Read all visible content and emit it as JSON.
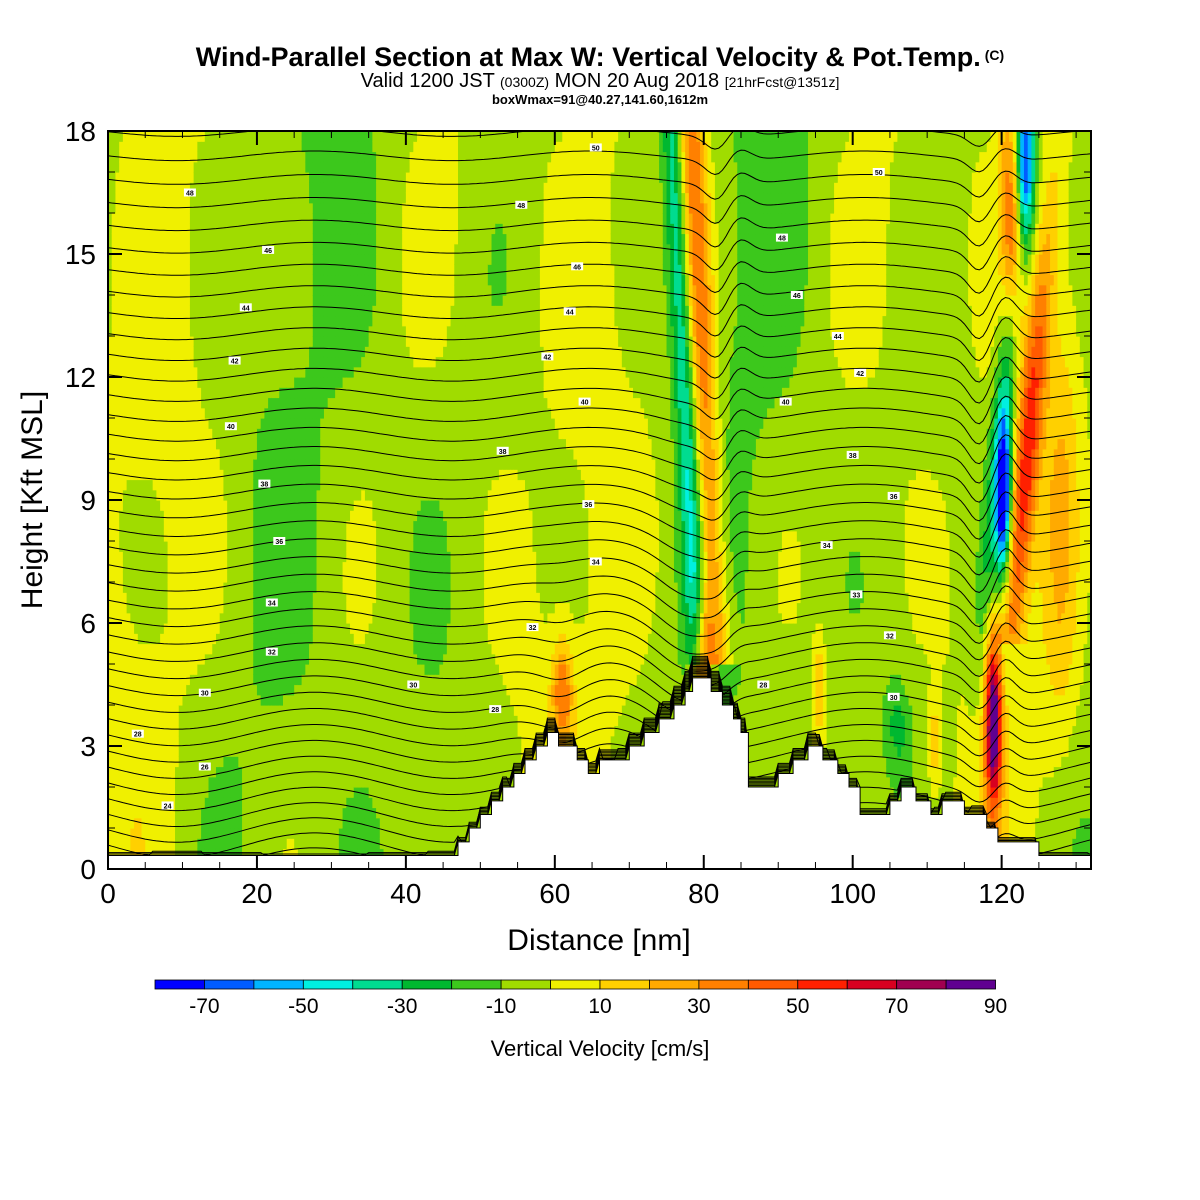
{
  "title": {
    "main": "Wind-Parallel Section at Max W: Vertical Velocity & Pot.Temp.",
    "copyright": "(C)",
    "valid_prefix": "Valid 1200 JST",
    "valid_z": "(0300Z)",
    "valid_date": "MON 20 Aug 2018",
    "forecast": "[21hrFcst@1351z]",
    "boxinfo": "boxWmax=91@40.27,141.60,1612m"
  },
  "chart_data": {
    "type": "heatmap",
    "xlabel": "Distance [nm]",
    "ylabel": "Height [Kft MSL]",
    "xlim": [
      0,
      132
    ],
    "ylim": [
      0,
      18
    ],
    "x_ticks": [
      "0",
      "20",
      "40",
      "60",
      "80",
      "100",
      "120"
    ],
    "y_ticks": [
      "0",
      "3",
      "6",
      "9",
      "12",
      "15",
      "18"
    ],
    "colorbar": {
      "label": "Vertical Velocity [cm/s]",
      "tick_labels": [
        "-70",
        "-50",
        "-30",
        "-10",
        "10",
        "30",
        "50",
        "70",
        "90"
      ],
      "levels": [
        -80,
        -70,
        -60,
        -50,
        -40,
        -30,
        -20,
        -10,
        0,
        10,
        20,
        30,
        40,
        50,
        60,
        70,
        80,
        90,
        100
      ],
      "colors": [
        "#0000ff",
        "#005cff",
        "#00b4ff",
        "#00f0e0",
        "#00dc90",
        "#00b830",
        "#3cc81c",
        "#a0dc00",
        "#f0f000",
        "#ffd000",
        "#ffaa00",
        "#ff8000",
        "#ff5a00",
        "#ff2000",
        "#d80020",
        "#a00050",
        "#600090"
      ]
    },
    "terrain": {
      "x_nm": [
        0,
        47,
        47,
        48.5,
        48.5,
        50,
        50,
        51.5,
        51.5,
        53,
        53,
        54.5,
        54.5,
        56,
        56,
        57.5,
        57.5,
        59,
        59,
        60.5,
        60.5,
        63,
        63,
        64.5,
        64.5,
        66,
        66,
        70,
        70,
        72,
        72,
        74,
        74,
        76,
        76,
        77.5,
        77.5,
        78.5,
        78.5,
        81,
        81,
        82.5,
        82.5,
        84,
        84,
        85,
        85,
        86,
        86,
        90,
        90,
        92,
        92,
        94,
        94,
        96,
        96,
        98,
        98,
        99.5,
        99.5,
        101,
        101,
        105,
        105,
        106.5,
        106.5,
        108.5,
        108.5,
        110.5,
        110.5,
        112,
        112,
        115,
        115,
        118,
        118,
        119.5,
        119.5,
        125,
        125,
        128,
        128,
        132
      ],
      "height_kft": [
        0.33,
        0.33,
        0.66,
        0.66,
        1.0,
        1.0,
        1.33,
        1.33,
        1.66,
        1.66,
        2.0,
        2.0,
        2.33,
        2.33,
        2.66,
        2.66,
        3.0,
        3.0,
        3.33,
        3.33,
        3.0,
        3.0,
        2.66,
        2.66,
        2.33,
        2.33,
        2.66,
        2.66,
        3.0,
        3.0,
        3.33,
        3.33,
        3.66,
        3.66,
        4.0,
        4.0,
        4.33,
        4.33,
        4.66,
        4.66,
        4.33,
        4.33,
        4.0,
        4.0,
        3.66,
        3.66,
        3.33,
        3.33,
        2.0,
        2.0,
        2.33,
        2.33,
        2.66,
        2.66,
        3.0,
        3.0,
        2.66,
        2.66,
        2.33,
        2.33,
        2.0,
        2.0,
        1.33,
        1.33,
        1.66,
        1.66,
        2.0,
        2.0,
        1.66,
        1.66,
        1.33,
        1.33,
        1.66,
        1.66,
        1.33,
        1.33,
        1.0,
        1.0,
        0.66,
        0.66,
        0.33,
        0.33,
        0.33,
        0.33
      ]
    },
    "contour_labels": [
      {
        "x_nm": 4,
        "z_kft": 3.3,
        "text": "28"
      },
      {
        "x_nm": 13,
        "z_kft": 4.3,
        "text": "30"
      },
      {
        "x_nm": 13,
        "z_kft": 2.5,
        "text": "26"
      },
      {
        "x_nm": 8,
        "z_kft": 1.55,
        "text": "24"
      },
      {
        "x_nm": 22,
        "z_kft": 5.3,
        "text": "32"
      },
      {
        "x_nm": 22,
        "z_kft": 6.5,
        "text": "34"
      },
      {
        "x_nm": 23,
        "z_kft": 8.0,
        "text": "36"
      },
      {
        "x_nm": 21,
        "z_kft": 9.4,
        "text": "38"
      },
      {
        "x_nm": 16.5,
        "z_kft": 10.8,
        "text": "40"
      },
      {
        "x_nm": 17,
        "z_kft": 12.4,
        "text": "42"
      },
      {
        "x_nm": 18.5,
        "z_kft": 13.7,
        "text": "44"
      },
      {
        "x_nm": 21.5,
        "z_kft": 15.1,
        "text": "46"
      },
      {
        "x_nm": 11,
        "z_kft": 16.5,
        "text": "48"
      },
      {
        "x_nm": 41,
        "z_kft": 4.5,
        "text": "30"
      },
      {
        "x_nm": 52,
        "z_kft": 3.9,
        "text": "28"
      },
      {
        "x_nm": 57,
        "z_kft": 5.9,
        "text": "32"
      },
      {
        "x_nm": 65.5,
        "z_kft": 7.5,
        "text": "34"
      },
      {
        "x_nm": 64.5,
        "z_kft": 8.9,
        "text": "36"
      },
      {
        "x_nm": 53,
        "z_kft": 10.2,
        "text": "38"
      },
      {
        "x_nm": 64,
        "z_kft": 11.4,
        "text": "40"
      },
      {
        "x_nm": 59,
        "z_kft": 12.5,
        "text": "42"
      },
      {
        "x_nm": 62,
        "z_kft": 13.6,
        "text": "44"
      },
      {
        "x_nm": 63,
        "z_kft": 14.7,
        "text": "46"
      },
      {
        "x_nm": 55.5,
        "z_kft": 16.2,
        "text": "48"
      },
      {
        "x_nm": 65.5,
        "z_kft": 17.6,
        "text": "50"
      },
      {
        "x_nm": 88,
        "z_kft": 4.5,
        "text": "28"
      },
      {
        "x_nm": 105.5,
        "z_kft": 4.2,
        "text": "30"
      },
      {
        "x_nm": 105,
        "z_kft": 5.7,
        "text": "32"
      },
      {
        "x_nm": 100.5,
        "z_kft": 6.7,
        "text": "33"
      },
      {
        "x_nm": 96.5,
        "z_kft": 7.9,
        "text": "34"
      },
      {
        "x_nm": 105.5,
        "z_kft": 9.1,
        "text": "36"
      },
      {
        "x_nm": 100,
        "z_kft": 10.1,
        "text": "38"
      },
      {
        "x_nm": 91,
        "z_kft": 11.4,
        "text": "40"
      },
      {
        "x_nm": 101,
        "z_kft": 12.1,
        "text": "42"
      },
      {
        "x_nm": 98,
        "z_kft": 13.0,
        "text": "44"
      },
      {
        "x_nm": 92.5,
        "z_kft": 14.0,
        "text": "46"
      },
      {
        "x_nm": 90.5,
        "z_kft": 15.4,
        "text": "48"
      },
      {
        "x_nm": 103.5,
        "z_kft": 17.0,
        "text": "50"
      }
    ]
  }
}
